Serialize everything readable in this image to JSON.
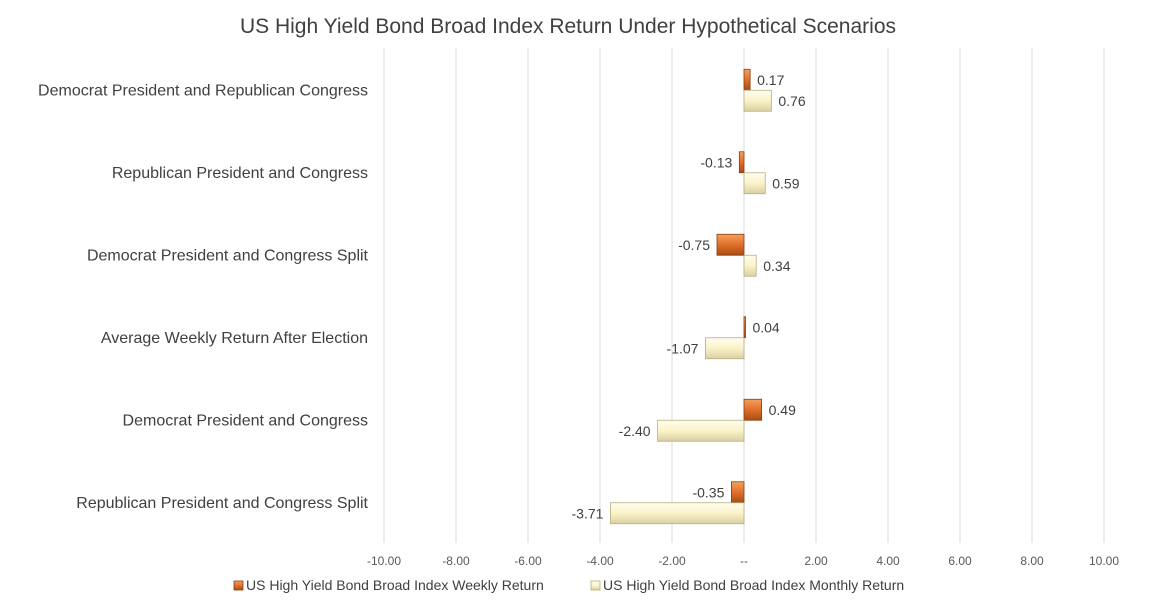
{
  "chart_data": {
    "type": "bar",
    "orientation": "horizontal",
    "title": "US High Yield Bond Broad Index Return Under Hypothetical Scenarios",
    "categories": [
      "Democrat President and Republican Congress",
      "Republican President and Congress",
      "Democrat President and Congress Split",
      "Average Weekly Return After Election",
      "Democrat President and Congress",
      "Republican President and Congress Split"
    ],
    "series": [
      {
        "name": "US High Yield Bond Broad Index Weekly Return",
        "values": [
          0.17,
          -0.13,
          -0.75,
          0.04,
          0.49,
          -0.35
        ],
        "labels": [
          "0.17",
          "-0.13",
          "-0.75",
          "0.04",
          "0.49",
          "-0.35"
        ],
        "color": "#e0702a"
      },
      {
        "name": "US High Yield Bond Broad Index Monthly Return",
        "values": [
          0.76,
          0.59,
          0.34,
          -1.07,
          -2.4,
          -3.71
        ],
        "labels": [
          "0.76",
          "0.59",
          "0.34",
          "-1.07",
          "-2.40",
          "-3.71"
        ],
        "color": "#fbf3c8"
      }
    ],
    "x_ticks": [
      -10,
      -8,
      -6,
      -4,
      -2,
      0,
      2,
      4,
      6,
      8,
      10
    ],
    "x_tick_labels": [
      "-10.00",
      "-8.00",
      "-6.00",
      "-4.00",
      "-2.00",
      "--",
      "2.00",
      "4.00",
      "6.00",
      "8.00",
      "10.00"
    ],
    "xlim": [
      -10,
      10
    ],
    "xlabel": "",
    "ylabel": "",
    "grid": true,
    "legend_position": "bottom"
  }
}
